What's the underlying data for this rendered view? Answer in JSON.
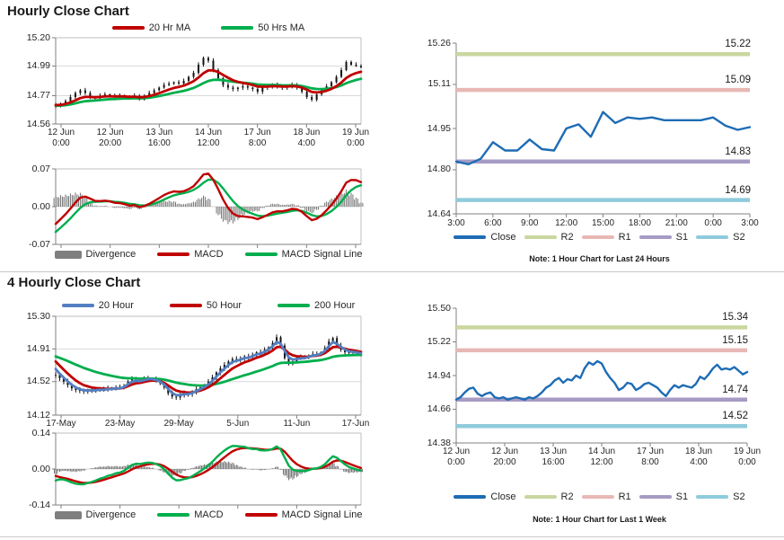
{
  "sections": {
    "hourly": {
      "title": "Hourly Close Chart"
    },
    "four_hourly": {
      "title": "4 Hourly Close Chart"
    }
  },
  "colors": {
    "candle": "#141414",
    "red_line": "#C00000",
    "green_line": "#00AE4D",
    "blue_ma": "#537FC2",
    "close_blue": "#1E6CB5",
    "r2": "#C9D79F",
    "r1": "#E8B8B4",
    "s1": "#A69BC4",
    "s2": "#8FCBDC",
    "divergence": "#7F7F7F"
  },
  "chart_data": [
    {
      "name": "hourly-price",
      "type": "candlestick",
      "ylim": [
        14.56,
        15.2
      ],
      "yticks": [
        15.2,
        14.99,
        14.77,
        14.56
      ],
      "grid": [
        14.99,
        14.77
      ],
      "xticks": [
        [
          "12 Jun",
          "0:00"
        ],
        [
          "12 Jun",
          "20:00"
        ],
        [
          "13 Jun",
          "16:00"
        ],
        [
          "14 Jun",
          "12:00"
        ],
        [
          "17 Jun",
          "8:00"
        ],
        [
          "18 Jun",
          "4:00"
        ],
        [
          "19 Jun",
          "0:00"
        ]
      ],
      "closes": [
        14.7,
        14.71,
        14.73,
        14.76,
        14.79,
        14.81,
        14.79,
        14.76,
        14.75,
        14.77,
        14.78,
        14.77,
        14.76,
        14.77,
        14.76,
        14.75,
        14.77,
        14.74,
        14.77,
        14.79,
        14.81,
        14.83,
        14.85,
        14.86,
        14.87,
        14.86,
        14.88,
        14.91,
        14.94,
        15.0,
        15.05,
        15.03,
        14.96,
        14.9,
        14.85,
        14.83,
        14.82,
        14.83,
        14.84,
        14.83,
        14.82,
        14.8,
        14.83,
        14.84,
        14.85,
        14.84,
        14.83,
        14.84,
        14.85,
        14.83,
        14.8,
        14.76,
        14.74,
        14.78,
        14.81,
        14.84,
        14.87,
        14.91,
        14.96,
        15.02,
        15.0,
        14.99,
        14.98
      ],
      "series": [
        {
          "label": "20 Hr MA",
          "color": "#C00000",
          "span": 8,
          "start": 14.7
        },
        {
          "label": "50 Hrs MA",
          "color": "#00AE4D",
          "span": 20,
          "start": 14.695
        }
      ],
      "legend": [
        {
          "label": "20 Hr MA",
          "color": "#C00000",
          "kind": "line"
        },
        {
          "label": "50 Hrs MA",
          "color": "#00AE4D",
          "kind": "line"
        }
      ]
    },
    {
      "name": "hourly-macd",
      "type": "macd",
      "ylim": [
        -0.07,
        0.07
      ],
      "yticks": [
        0.07,
        0.0,
        -0.07
      ],
      "grid": [
        0
      ],
      "tick_count": 7,
      "source": 0,
      "fast": 6,
      "slow": 13,
      "signal": 5,
      "seeds": {
        "fast": -0.02,
        "slow": 0.012,
        "signal": -0.015
      },
      "macd_color": "#C00000",
      "signal_color": "#00AE4D",
      "legend": [
        {
          "label": "Divergence",
          "color": "#7F7F7F",
          "kind": "bar"
        },
        {
          "label": "MACD",
          "color": "#C00000",
          "kind": "line"
        },
        {
          "label": "MACD Signal Line",
          "color": "#00AE4D",
          "kind": "line"
        }
      ]
    },
    {
      "name": "last-24-hours-close",
      "type": "line-levels",
      "ylim": [
        14.64,
        15.26
      ],
      "yticks": [
        15.26,
        15.11,
        14.95,
        14.8,
        14.64
      ],
      "xticks": [
        "3:00",
        "6:00",
        "9:00",
        "12:00",
        "15:00",
        "18:00",
        "21:00",
        "0:00",
        "3:00"
      ],
      "close": [
        14.83,
        14.82,
        14.84,
        14.9,
        14.87,
        14.87,
        14.91,
        14.875,
        14.87,
        14.95,
        14.965,
        14.92,
        15.01,
        14.97,
        14.99,
        14.985,
        14.99,
        14.98,
        14.98,
        14.98,
        14.98,
        14.99,
        14.96,
        14.945,
        14.955
      ],
      "close_color": "#1E6CB5",
      "levels": [
        {
          "label": "R2",
          "value": 15.22,
          "color": "#C9D79F"
        },
        {
          "label": "R1",
          "value": 15.09,
          "color": "#E8B8B4"
        },
        {
          "label": "S1",
          "value": 14.83,
          "color": "#A69BC4"
        },
        {
          "label": "S2",
          "value": 14.69,
          "color": "#8FCBDC"
        }
      ],
      "legend": [
        {
          "label": "Close",
          "color": "#1E6CB5",
          "kind": "line"
        },
        {
          "label": "R2",
          "color": "#C9D79F",
          "kind": "line"
        },
        {
          "label": "R1",
          "color": "#E8B8B4",
          "kind": "line"
        },
        {
          "label": "S1",
          "color": "#A69BC4",
          "kind": "line"
        },
        {
          "label": "S2",
          "color": "#8FCBDC",
          "kind": "line"
        }
      ],
      "note": "Note: 1 Hour Chart for Last 24 Hours"
    },
    {
      "name": "four-hourly-price",
      "type": "candlestick",
      "ylim": [
        14.12,
        15.3
      ],
      "yticks": [
        15.3,
        14.91,
        14.52,
        14.12
      ],
      "grid": [
        14.91,
        14.52
      ],
      "xticks": [
        "17-May",
        "23-May",
        "29-May",
        "5-Jun",
        "11-Jun",
        "17-Jun"
      ],
      "closes": [
        14.6,
        14.56,
        14.52,
        14.48,
        14.44,
        14.42,
        14.41,
        14.4,
        14.42,
        14.41,
        14.42,
        14.43,
        14.42,
        14.44,
        14.43,
        14.45,
        14.44,
        14.47,
        14.52,
        14.55,
        14.54,
        14.52,
        14.55,
        14.56,
        14.55,
        14.53,
        14.5,
        14.45,
        14.38,
        14.34,
        14.33,
        14.36,
        14.38,
        14.37,
        14.4,
        14.43,
        14.45,
        14.48,
        14.52,
        14.57,
        14.63,
        14.68,
        14.72,
        14.76,
        14.79,
        14.78,
        14.8,
        14.82,
        14.81,
        14.84,
        14.87,
        14.86,
        14.9,
        14.93,
        14.98,
        15.05,
        14.95,
        14.8,
        14.73,
        14.76,
        14.79,
        14.81,
        14.8,
        14.83,
        14.85,
        14.84,
        14.87,
        14.92,
        15.0,
        15.04,
        14.95,
        14.9,
        14.87,
        14.86,
        14.87,
        14.86,
        14.85
      ],
      "series": [
        {
          "label": "20 Hour",
          "color": "#537FC2",
          "span": 3,
          "start": 14.67
        },
        {
          "label": "50 Hour",
          "color": "#C00000",
          "span": 7,
          "start": 14.76
        },
        {
          "label": "200 Hour",
          "color": "#00AE4D",
          "span": 30,
          "start": 14.82
        }
      ],
      "legend": [
        {
          "label": "20 Hour",
          "color": "#537FC2",
          "kind": "line"
        },
        {
          "label": "50 Hour",
          "color": "#C00000",
          "kind": "line"
        },
        {
          "label": "200 Hour",
          "color": "#00AE4D",
          "kind": "line"
        }
      ]
    },
    {
      "name": "four-hourly-macd",
      "type": "macd",
      "ylim": [
        -0.14,
        0.14
      ],
      "yticks": [
        0.14,
        0.0,
        -0.14
      ],
      "grid": [
        0
      ],
      "tick_count": 6,
      "source": 3,
      "fast": 6,
      "slow": 13,
      "signal": 5,
      "seeds": {
        "fast": -0.03,
        "slow": 0.015,
        "signal": 0.018
      },
      "macd_color": "#00AE4D",
      "signal_color": "#C00000",
      "legend": [
        {
          "label": "Divergence",
          "color": "#7F7F7F",
          "kind": "bar"
        },
        {
          "label": "MACD",
          "color": "#00AE4D",
          "kind": "line"
        },
        {
          "label": "MACD Signal Line",
          "color": "#C00000",
          "kind": "line"
        }
      ]
    },
    {
      "name": "last-1-week-close",
      "type": "line-levels",
      "ylim": [
        14.38,
        15.5
      ],
      "yticks": [
        15.5,
        15.22,
        14.94,
        14.66,
        14.38
      ],
      "xticks": [
        [
          "12 Jun",
          "0:00"
        ],
        [
          "12 Jun",
          "20:00"
        ],
        [
          "13 Jun",
          "16:00"
        ],
        [
          "14 Jun",
          "12:00"
        ],
        [
          "17 Jun",
          "8:00"
        ],
        [
          "18 Jun",
          "4:00"
        ],
        [
          "19 Jun",
          "0:00"
        ]
      ],
      "close": [
        14.74,
        14.76,
        14.8,
        14.83,
        14.84,
        14.79,
        14.77,
        14.79,
        14.8,
        14.76,
        14.75,
        14.76,
        14.74,
        14.75,
        14.76,
        14.75,
        14.74,
        14.76,
        14.75,
        14.77,
        14.8,
        14.84,
        14.86,
        14.9,
        14.92,
        14.88,
        14.91,
        14.9,
        14.94,
        14.92,
        15.0,
        15.05,
        15.03,
        15.06,
        15.04,
        14.97,
        14.92,
        14.88,
        14.82,
        14.84,
        14.88,
        14.87,
        14.82,
        14.84,
        14.87,
        14.88,
        14.86,
        14.84,
        14.8,
        14.77,
        14.82,
        14.86,
        14.84,
        14.86,
        14.85,
        14.84,
        14.87,
        14.93,
        14.91,
        14.95,
        15.0,
        15.03,
        14.99,
        15.0,
        14.99,
        15.01,
        14.98,
        14.95,
        14.97
      ],
      "close_color": "#1E6CB5",
      "levels": [
        {
          "label": "R2",
          "value": 15.34,
          "color": "#C9D79F"
        },
        {
          "label": "R1",
          "value": 15.15,
          "color": "#E8B8B4"
        },
        {
          "label": "S1",
          "value": 14.74,
          "color": "#A69BC4"
        },
        {
          "label": "S2",
          "value": 14.52,
          "color": "#8FCBDC"
        }
      ],
      "legend": [
        {
          "label": "Close",
          "color": "#1E6CB5",
          "kind": "line"
        },
        {
          "label": "R2",
          "color": "#C9D79F",
          "kind": "line"
        },
        {
          "label": "R1",
          "color": "#E8B8B4",
          "kind": "line"
        },
        {
          "label": "S1",
          "color": "#A69BC4",
          "kind": "line"
        },
        {
          "label": "S2",
          "color": "#8FCBDC",
          "kind": "line"
        }
      ],
      "note": "Note: 1 Hour Chart for Last 1 Week"
    }
  ]
}
